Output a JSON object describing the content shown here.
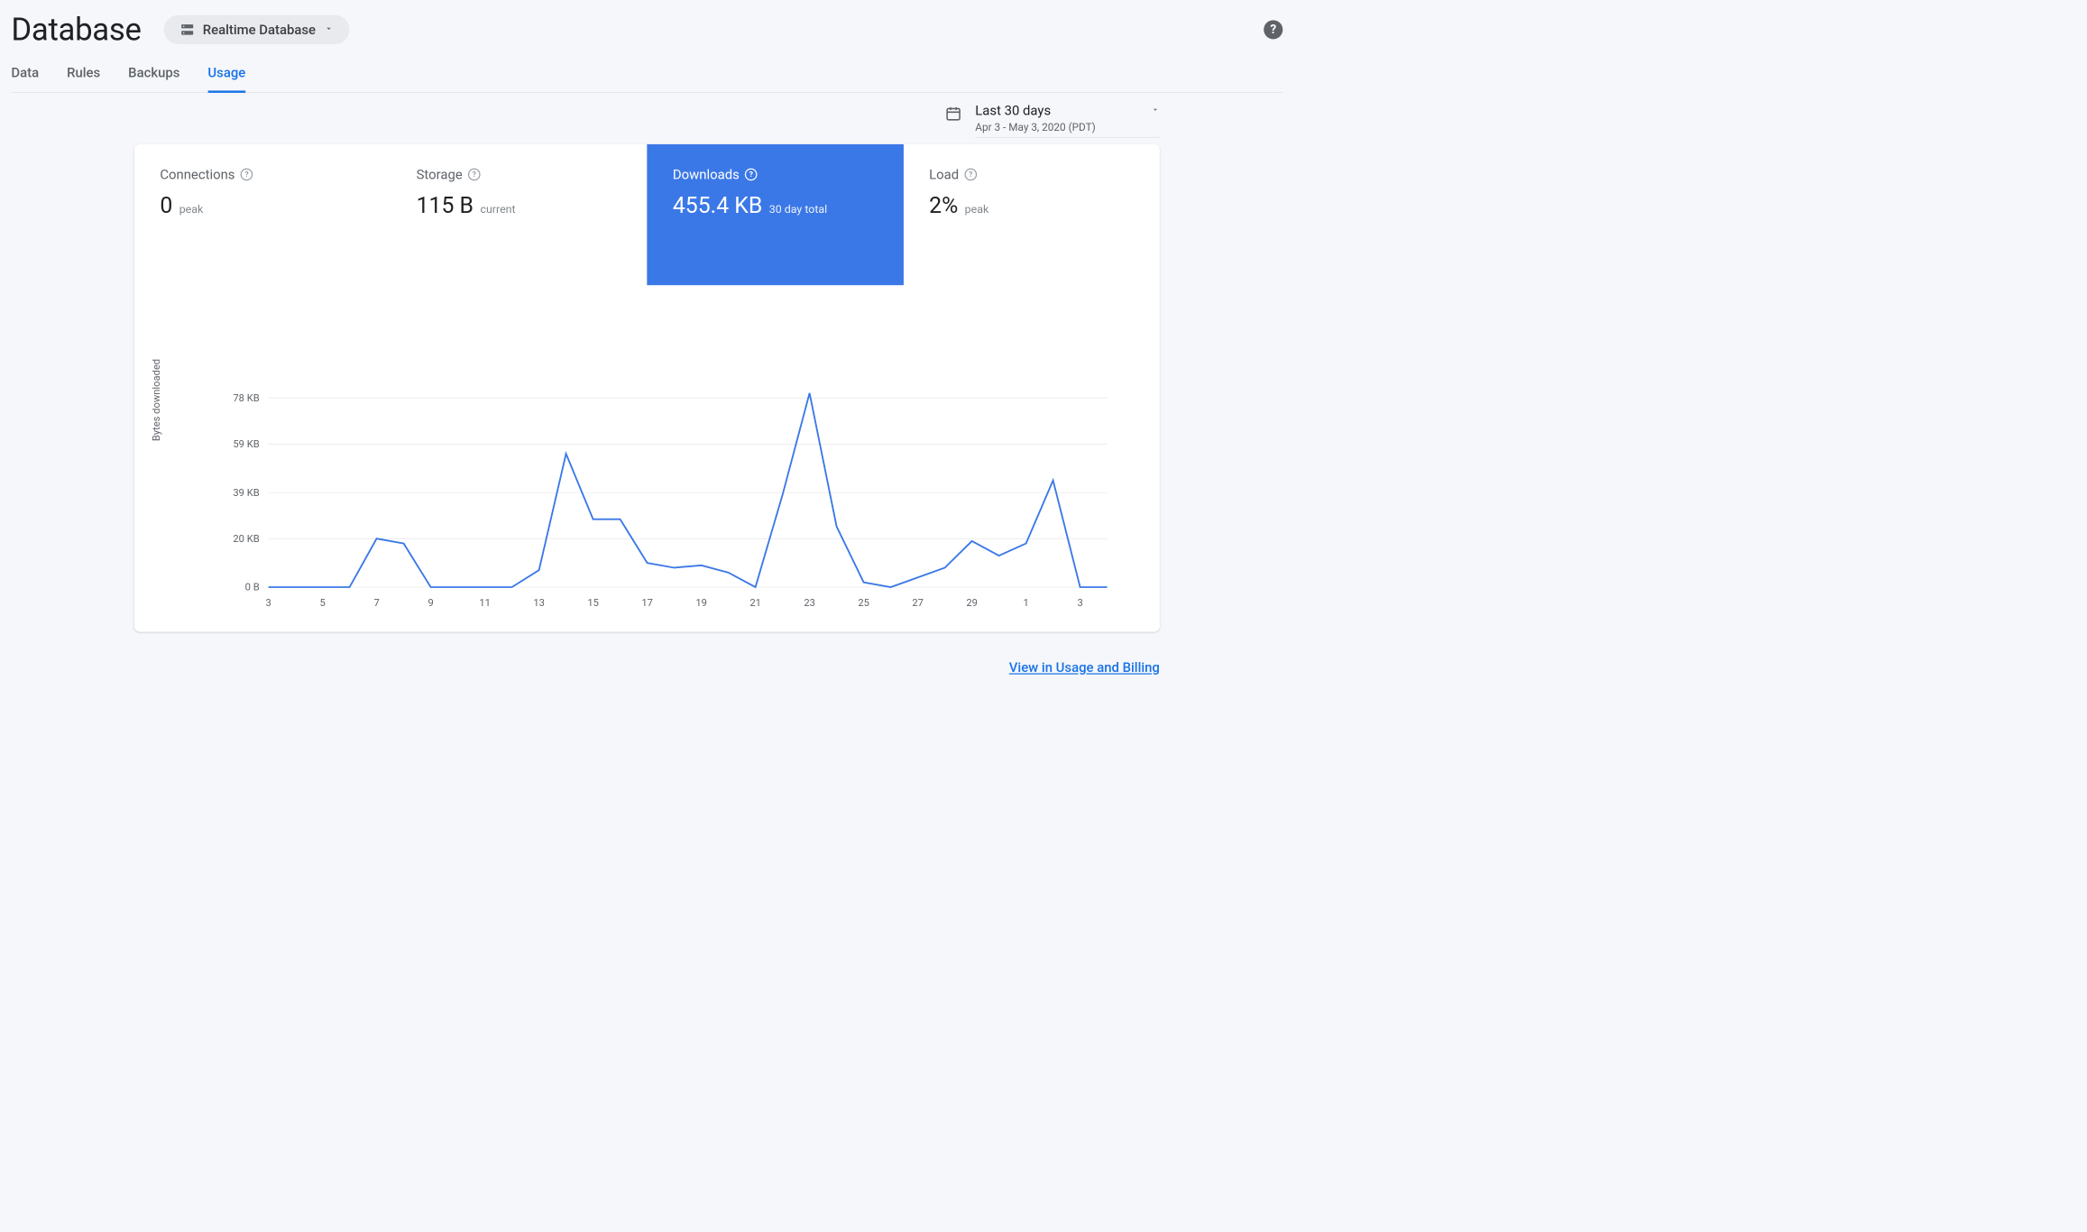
{
  "page_title": "Database",
  "db_selector": {
    "label": "Realtime Database"
  },
  "tabs": [
    {
      "label": "Data",
      "active": false
    },
    {
      "label": "Rules",
      "active": false
    },
    {
      "label": "Backups",
      "active": false
    },
    {
      "label": "Usage",
      "active": true
    }
  ],
  "date_picker": {
    "range_label": "Last 30 days",
    "range_sub": "Apr 3 - May 3, 2020 (PDT)"
  },
  "metrics": [
    {
      "title": "Connections",
      "value": "0",
      "sub": "peak",
      "selected": false
    },
    {
      "title": "Storage",
      "value": "115 B",
      "sub": "current",
      "selected": false
    },
    {
      "title": "Downloads",
      "value": "455.4 KB",
      "sub": "30 day total",
      "selected": true
    },
    {
      "title": "Load",
      "value": "2%",
      "sub": "peak",
      "selected": false
    }
  ],
  "chart": {
    "type": "line",
    "y_axis_label": "Bytes downloaded",
    "line_color": "#3b78e7",
    "grid_color": "#e0e0e0",
    "background_color": "#ffffff",
    "line_width": 3,
    "y_ticks": [
      {
        "label": "0 B",
        "v": 0
      },
      {
        "label": "20 KB",
        "v": 20
      },
      {
        "label": "39 KB",
        "v": 39
      },
      {
        "label": "59 KB",
        "v": 59
      },
      {
        "label": "78 KB",
        "v": 78
      }
    ],
    "y_max": 83,
    "x_labels": [
      "3",
      "5",
      "7",
      "9",
      "11",
      "13",
      "15",
      "17",
      "19",
      "21",
      "23",
      "25",
      "27",
      "29",
      "1",
      "3"
    ],
    "x_label_step_points": 2,
    "points": [
      {
        "x": 0,
        "y": 0
      },
      {
        "x": 1,
        "y": 0
      },
      {
        "x": 2,
        "y": 0
      },
      {
        "x": 3,
        "y": 0
      },
      {
        "x": 4,
        "y": 20
      },
      {
        "x": 5,
        "y": 18
      },
      {
        "x": 6,
        "y": 0
      },
      {
        "x": 7,
        "y": 0
      },
      {
        "x": 8,
        "y": 0
      },
      {
        "x": 9,
        "y": 0
      },
      {
        "x": 10,
        "y": 7
      },
      {
        "x": 11,
        "y": 55
      },
      {
        "x": 12,
        "y": 28
      },
      {
        "x": 13,
        "y": 28
      },
      {
        "x": 14,
        "y": 10
      },
      {
        "x": 15,
        "y": 8
      },
      {
        "x": 16,
        "y": 9
      },
      {
        "x": 17,
        "y": 6
      },
      {
        "x": 18,
        "y": 0
      },
      {
        "x": 19,
        "y": 38
      },
      {
        "x": 20,
        "y": 80
      },
      {
        "x": 21,
        "y": 25
      },
      {
        "x": 22,
        "y": 2
      },
      {
        "x": 23,
        "y": 0
      },
      {
        "x": 24,
        "y": 4
      },
      {
        "x": 25,
        "y": 8
      },
      {
        "x": 26,
        "y": 19
      },
      {
        "x": 27,
        "y": 13
      },
      {
        "x": 28,
        "y": 18
      },
      {
        "x": 29,
        "y": 44
      },
      {
        "x": 30,
        "y": 0
      },
      {
        "x": 31,
        "y": 0
      }
    ]
  },
  "footer_link": "View in Usage and Billing"
}
